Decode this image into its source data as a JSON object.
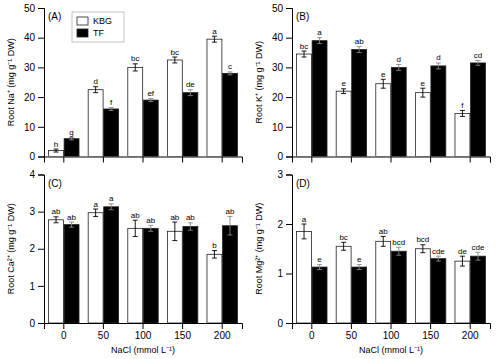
{
  "chart_data": [
    {
      "type": "bar",
      "title": "(A)",
      "ylabel": "Root Na⁺ (mg g⁻¹ DW)",
      "categories": [
        "0",
        "50",
        "100",
        "150",
        "200"
      ],
      "series": [
        {
          "name": "KBG",
          "color": "white",
          "values": [
            2.0,
            22.5,
            30.0,
            32.5,
            39.5
          ],
          "errors": [
            0.5,
            1.0,
            1.2,
            1.0,
            1.0
          ],
          "labels": [
            "h",
            "d",
            "bc",
            "bc",
            "a"
          ]
        },
        {
          "name": "TF",
          "color": "black",
          "values": [
            6.0,
            16.0,
            19.0,
            21.5,
            28.0
          ],
          "errors": [
            0.4,
            0.5,
            0.5,
            1.0,
            0.5
          ],
          "labels": [
            "g",
            "f",
            "ef",
            "de",
            "c"
          ]
        }
      ],
      "ylim": [
        0,
        50
      ],
      "yticks": [
        0,
        10,
        20,
        30,
        40,
        50
      ],
      "legend": "upper left",
      "tick_labels": "y"
    },
    {
      "type": "bar",
      "title": "(B)",
      "ylabel": "Root K⁺ (mg g⁻¹ DW)",
      "categories": [
        "0",
        "50",
        "100",
        "150",
        "200"
      ],
      "series": [
        {
          "name": "KBG",
          "color": "white",
          "values": [
            34.5,
            22.0,
            24.5,
            21.5,
            14.5
          ],
          "errors": [
            1.0,
            0.8,
            1.5,
            1.5,
            1.0
          ],
          "labels": [
            "bc",
            "e",
            "e",
            "e",
            "f"
          ]
        },
        {
          "name": "TF",
          "color": "black",
          "values": [
            39.0,
            36.0,
            30.0,
            30.5,
            31.5
          ],
          "errors": [
            1.0,
            1.0,
            1.0,
            1.0,
            0.8
          ],
          "labels": [
            "a",
            "ab",
            "d",
            "d",
            "cd"
          ]
        }
      ],
      "ylim": [
        0,
        50
      ],
      "yticks": [
        0,
        10,
        20,
        30,
        40,
        50
      ],
      "tick_labels": "y"
    },
    {
      "type": "bar",
      "title": "(C)",
      "ylabel": "Root Ca²⁺ (mg g⁻¹ DW)",
      "xlabel": "NaCl (mmol L⁻¹)",
      "categories": [
        "0",
        "50",
        "100",
        "150",
        "200"
      ],
      "series": [
        {
          "name": "KBG",
          "color": "white",
          "values": [
            2.78,
            2.97,
            2.55,
            2.47,
            1.85
          ],
          "errors": [
            0.08,
            0.1,
            0.22,
            0.25,
            0.1
          ],
          "labels": [
            "ab",
            "a",
            "ab",
            "ab",
            "b"
          ]
        },
        {
          "name": "TF",
          "color": "black",
          "values": [
            2.65,
            3.13,
            2.55,
            2.6,
            2.62
          ],
          "errors": [
            0.07,
            0.08,
            0.08,
            0.1,
            0.25
          ],
          "labels": [
            "ab",
            "a",
            "ab",
            "ab",
            "ab"
          ]
        }
      ],
      "ylim": [
        0,
        4
      ],
      "yticks": [
        0,
        1,
        2,
        3,
        4
      ]
    },
    {
      "type": "bar",
      "title": "(D)",
      "ylabel": "Root Mg²⁺ (mg g⁻¹ DW)",
      "xlabel": "NaCl (mmol L⁻¹)",
      "categories": [
        "0",
        "50",
        "100",
        "150",
        "200"
      ],
      "series": [
        {
          "name": "KBG",
          "color": "white",
          "values": [
            1.85,
            1.55,
            1.65,
            1.5,
            1.25
          ],
          "errors": [
            0.15,
            0.08,
            0.1,
            0.08,
            0.1
          ],
          "labels": [
            "a",
            "bc",
            "ab",
            "bcd",
            "de"
          ]
        },
        {
          "name": "TF",
          "color": "black",
          "values": [
            1.13,
            1.13,
            1.45,
            1.3,
            1.35
          ],
          "errors": [
            0.05,
            0.05,
            0.08,
            0.05,
            0.08
          ],
          "labels": [
            "e",
            "e",
            "bcd",
            "cde",
            "cde"
          ]
        }
      ],
      "ylim": [
        0,
        3
      ],
      "yticks": [
        0,
        1,
        2,
        3
      ]
    }
  ]
}
